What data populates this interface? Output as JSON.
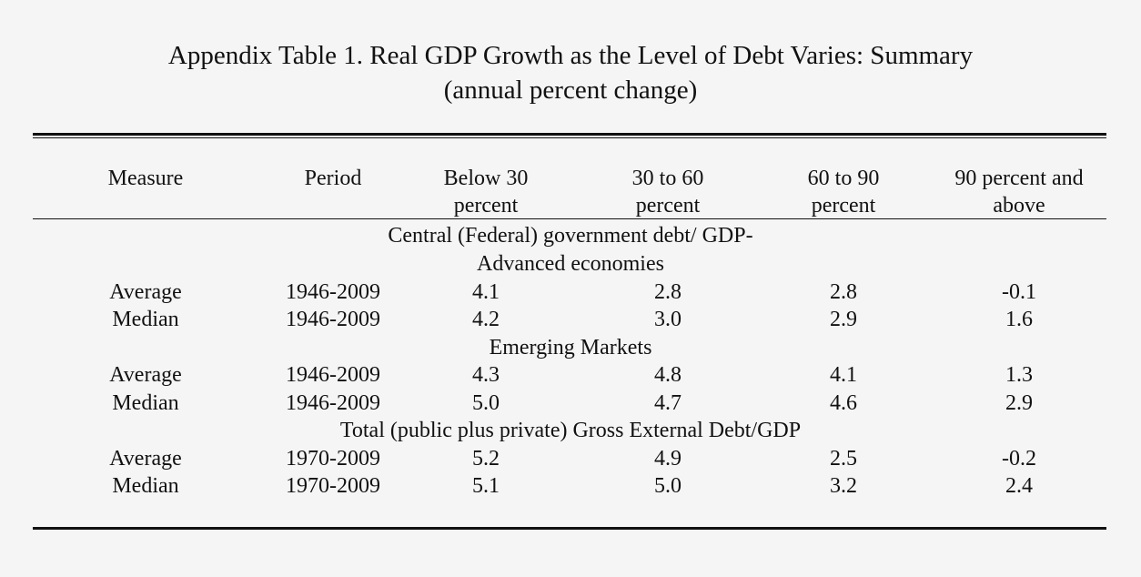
{
  "title": {
    "line1": "Appendix Table 1. Real GDP Growth as the Level of Debt Varies: Summary",
    "line2": "(annual percent change)"
  },
  "header": {
    "measure": "Measure",
    "period": "Period",
    "col_below30": [
      "Below 30",
      "percent"
    ],
    "col_30_60": [
      "30 to 60",
      "percent"
    ],
    "col_60_90": [
      "60 to 90",
      "percent"
    ],
    "col_90plus": [
      "90 percent and",
      "above"
    ]
  },
  "groups": [
    {
      "label_lines": [
        "Central (Federal) government debt/ GDP-",
        "Advanced economies"
      ],
      "rows": [
        {
          "measure": "Average",
          "period": "1946-2009",
          "values": [
            "4.1",
            "2.8",
            "2.8",
            "-0.1"
          ]
        },
        {
          "measure": "Median",
          "period": "1946-2009",
          "values": [
            "4.2",
            "3.0",
            "2.9",
            "1.6"
          ]
        }
      ]
    },
    {
      "label_lines": [
        "Emerging Markets"
      ],
      "rows": [
        {
          "measure": "Average",
          "period": "1946-2009",
          "values": [
            "4.3",
            "4.8",
            "4.1",
            "1.3"
          ]
        },
        {
          "measure": "Median",
          "period": "1946-2009",
          "values": [
            "5.0",
            "4.7",
            "4.6",
            "2.9"
          ]
        }
      ]
    },
    {
      "label_lines": [
        "Total (public plus private) Gross External Debt/GDP"
      ],
      "rows": [
        {
          "measure": "Average",
          "period": "1970-2009",
          "values": [
            "5.2",
            "4.9",
            "2.5",
            "-0.2"
          ]
        },
        {
          "measure": "Median",
          "period": "1970-2009",
          "values": [
            "5.1",
            "5.0",
            "3.2",
            "2.4"
          ]
        }
      ]
    }
  ]
}
